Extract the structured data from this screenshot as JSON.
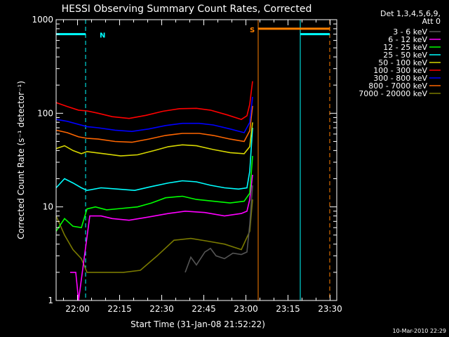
{
  "chart_data": {
    "type": "line",
    "title": "HESSI Observing Summary Count Rates, Corrected",
    "xlabel": "Start Time (31-Jan-08 21:52:22)",
    "ylabel": "Corrected Count Rate (s⁻¹ detector⁻¹)",
    "y_scale": "log",
    "xlim_minutes_after_start": [
      0,
      100
    ],
    "ylim": [
      1,
      1000
    ],
    "x_tick_labels": [
      "22:00",
      "22:15",
      "22:30",
      "22:45",
      "23:00",
      "23:15",
      "23:30"
    ],
    "x_tick_minutes_after_start": [
      7.63,
      22.63,
      37.63,
      52.63,
      67.63,
      82.63,
      97.63
    ],
    "y_tick_labels": [
      "1",
      "10",
      "100",
      "1000"
    ],
    "y_tick_values": [
      1,
      10,
      100,
      1000
    ],
    "legend_header": [
      "Det 1,3,4,5,6,9,",
      "Att 0"
    ],
    "series": [
      {
        "name": "3 - 6 keV",
        "color": "#000000",
        "points": [
          [
            46,
            2.0
          ],
          [
            48,
            2.9
          ],
          [
            50,
            2.4
          ],
          [
            53,
            3.3
          ],
          [
            55,
            3.6
          ],
          [
            57,
            3.0
          ],
          [
            60,
            2.8
          ],
          [
            63,
            3.2
          ],
          [
            66,
            3.1
          ],
          [
            68,
            3.3
          ],
          [
            69,
            6.5
          ],
          [
            70,
            17
          ]
        ]
      },
      {
        "name": "6 - 12 keV",
        "color": "#ff00ff",
        "points": [
          [
            5,
            2.0
          ],
          [
            7,
            2.0
          ],
          [
            8,
            1.0
          ],
          [
            12,
            8.0
          ],
          [
            16,
            8.0
          ],
          [
            20,
            7.5
          ],
          [
            26,
            7.2
          ],
          [
            33,
            7.8
          ],
          [
            40,
            8.5
          ],
          [
            46,
            9.0
          ],
          [
            53,
            8.7
          ],
          [
            60,
            8.0
          ],
          [
            66,
            8.5
          ],
          [
            68,
            9.0
          ],
          [
            69,
            12
          ],
          [
            70,
            22
          ]
        ]
      },
      {
        "name": "12 - 25 keV",
        "color": "#00ff00",
        "points": [
          [
            0,
            5.5
          ],
          [
            3,
            7.5
          ],
          [
            6,
            6.2
          ],
          [
            9,
            6.0
          ],
          [
            11,
            9.5
          ],
          [
            14,
            10
          ],
          [
            18,
            9.3
          ],
          [
            23,
            9.6
          ],
          [
            29,
            10
          ],
          [
            34,
            11
          ],
          [
            39,
            12.5
          ],
          [
            45,
            13
          ],
          [
            50,
            12
          ],
          [
            56,
            11.5
          ],
          [
            62,
            11
          ],
          [
            67,
            11.5
          ],
          [
            69,
            14
          ],
          [
            70,
            35
          ]
        ]
      },
      {
        "name": "25 - 50 keV",
        "color": "#00ffff",
        "points": [
          [
            0,
            16
          ],
          [
            3,
            20
          ],
          [
            6,
            18
          ],
          [
            9,
            16
          ],
          [
            11,
            15
          ],
          [
            16,
            16
          ],
          [
            22,
            15.5
          ],
          [
            28,
            15
          ],
          [
            34,
            16.5
          ],
          [
            40,
            18
          ],
          [
            45,
            19
          ],
          [
            50,
            18.5
          ],
          [
            55,
            17
          ],
          [
            60,
            16
          ],
          [
            65,
            15.5
          ],
          [
            68,
            16
          ],
          [
            69,
            24
          ],
          [
            70,
            70
          ]
        ]
      },
      {
        "name": "50 - 100 keV",
        "color": "#d7d700",
        "points": [
          [
            0,
            42
          ],
          [
            3,
            45
          ],
          [
            6,
            40
          ],
          [
            9,
            37
          ],
          [
            11,
            39
          ],
          [
            17,
            37
          ],
          [
            23,
            35
          ],
          [
            29,
            36
          ],
          [
            35,
            40
          ],
          [
            40,
            44
          ],
          [
            45,
            46
          ],
          [
            50,
            45
          ],
          [
            56,
            41
          ],
          [
            62,
            38
          ],
          [
            67,
            37
          ],
          [
            69,
            44
          ],
          [
            70,
            80
          ]
        ]
      },
      {
        "name": "100 - 300 keV",
        "color": "#ff0000",
        "points": [
          [
            0,
            130
          ],
          [
            4,
            118
          ],
          [
            8,
            108
          ],
          [
            11,
            106
          ],
          [
            15,
            100
          ],
          [
            20,
            92
          ],
          [
            26,
            88
          ],
          [
            32,
            95
          ],
          [
            38,
            105
          ],
          [
            44,
            112
          ],
          [
            50,
            113
          ],
          [
            55,
            108
          ],
          [
            61,
            96
          ],
          [
            66,
            86
          ],
          [
            68,
            94
          ],
          [
            69,
            125
          ],
          [
            70,
            220
          ]
        ]
      },
      {
        "name": "300 - 800 keV",
        "color": "#0000ff",
        "points": [
          [
            0,
            86
          ],
          [
            4,
            82
          ],
          [
            8,
            76
          ],
          [
            11,
            72
          ],
          [
            15,
            70
          ],
          [
            21,
            66
          ],
          [
            27,
            64
          ],
          [
            33,
            68
          ],
          [
            39,
            74
          ],
          [
            45,
            78
          ],
          [
            51,
            78
          ],
          [
            56,
            75
          ],
          [
            62,
            68
          ],
          [
            67,
            62
          ],
          [
            69,
            80
          ],
          [
            70,
            150
          ]
        ]
      },
      {
        "name": "800 - 7000 keV",
        "color": "#ff6600",
        "points": [
          [
            0,
            66
          ],
          [
            4,
            62
          ],
          [
            8,
            56
          ],
          [
            11,
            54
          ],
          [
            15,
            53
          ],
          [
            21,
            50
          ],
          [
            27,
            49
          ],
          [
            33,
            53
          ],
          [
            39,
            58
          ],
          [
            45,
            61
          ],
          [
            51,
            61
          ],
          [
            56,
            58
          ],
          [
            62,
            53
          ],
          [
            67,
            50
          ],
          [
            69,
            65
          ],
          [
            70,
            120
          ]
        ]
      },
      {
        "name": "7000 - 20000 keV",
        "color": "#7a7a00",
        "points": [
          [
            0,
            8.0
          ],
          [
            3,
            5.0
          ],
          [
            6,
            3.5
          ],
          [
            9,
            2.8
          ],
          [
            11,
            2.0
          ],
          [
            17,
            2.0
          ],
          [
            24,
            2.0
          ],
          [
            30,
            2.1
          ],
          [
            36,
            3.0
          ],
          [
            42,
            4.4
          ],
          [
            48,
            4.6
          ],
          [
            54,
            4.3
          ],
          [
            60,
            4.0
          ],
          [
            66,
            3.5
          ],
          [
            69,
            5.5
          ],
          [
            70,
            12
          ]
        ]
      }
    ],
    "flag_bars": [
      {
        "label": "N",
        "color": "#00ffff",
        "x_range": [
          0,
          10.5
        ],
        "y_value": 700
      },
      {
        "label": "",
        "color": "#00ffff",
        "x_range": [
          87,
          97.5
        ],
        "y_value": 700
      },
      {
        "label": "S",
        "color": "#ff8000",
        "x_range": [
          72,
          97.5
        ],
        "y_value": 800
      }
    ],
    "vertical_lines": [
      {
        "color": "#00ffff",
        "style": "solid",
        "x": 0
      },
      {
        "color": "#00ffff",
        "style": "dashed",
        "x": 10.5
      },
      {
        "color": "#ff8000",
        "style": "solid",
        "x": 72
      },
      {
        "color": "#00ffff",
        "style": "solid",
        "x": 87
      },
      {
        "color": "#ff8000",
        "style": "dashed",
        "x": 97.5
      }
    ],
    "background_color": "#000000",
    "axis_color": "#ffffff",
    "date_stamp": "10-Mar-2010 22:29"
  }
}
